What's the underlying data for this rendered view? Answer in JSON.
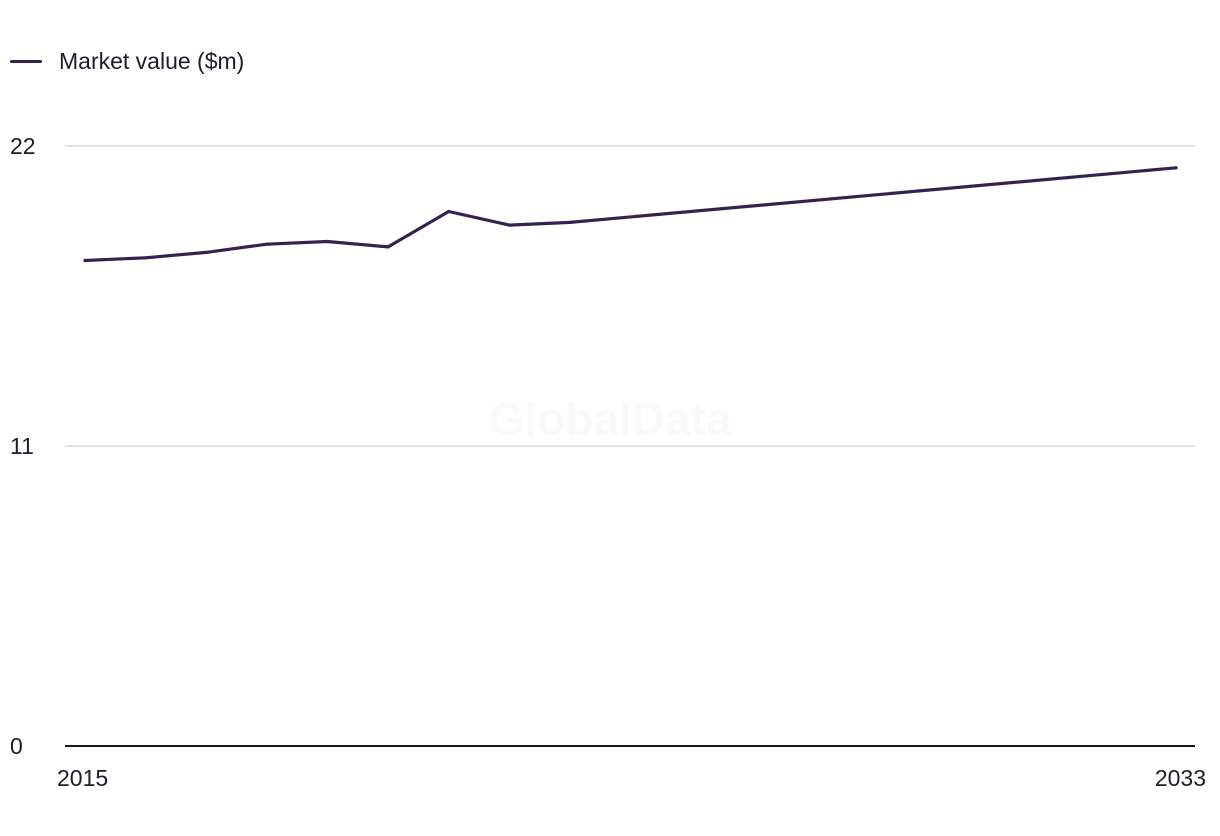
{
  "legend": {
    "label": "Market value ($m)",
    "color": "#35224f"
  },
  "watermark": "GlobalData",
  "chart_data": {
    "type": "line",
    "title": "",
    "xlabel": "",
    "ylabel": "",
    "x": [
      2015,
      2016,
      2017,
      2018,
      2019,
      2020,
      2021,
      2022,
      2023,
      2033
    ],
    "series": [
      {
        "name": "Market value ($m)",
        "color": "#35224f",
        "values": [
          17.8,
          17.9,
          18.1,
          18.4,
          18.5,
          18.3,
          19.6,
          19.1,
          19.2,
          21.2
        ]
      }
    ],
    "xlim": [
      2015,
      2033
    ],
    "ylim": [
      0,
      22
    ],
    "yticks": [
      0,
      11,
      22
    ],
    "xtick_labels": [
      "2015",
      "2033"
    ],
    "grid": true,
    "legend_position": "top-left"
  }
}
